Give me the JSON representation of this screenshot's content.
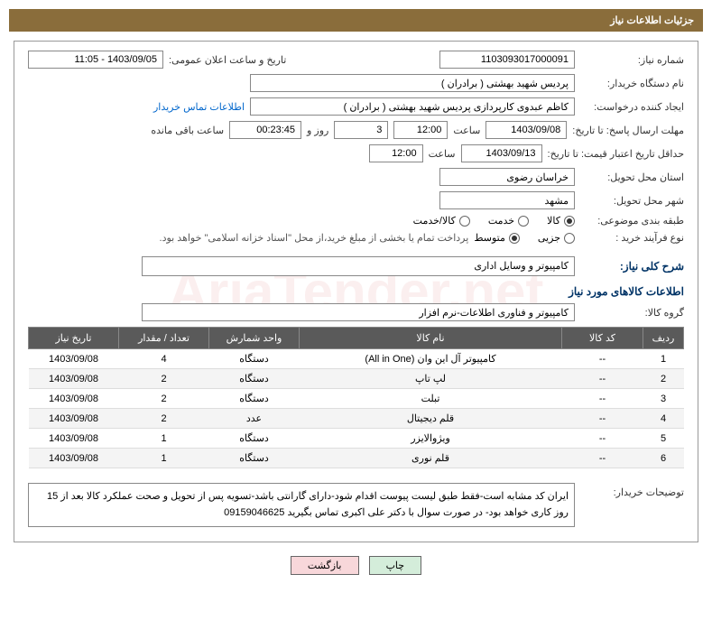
{
  "header": {
    "title": "جزئیات اطلاعات نیاز"
  },
  "watermark": "AriaTender.net",
  "fields": {
    "requestNumber": {
      "label": "شماره نیاز:",
      "value": "1103093017000091"
    },
    "announceDate": {
      "label": "تاریخ و ساعت اعلان عمومی:",
      "value": "1403/09/05 - 11:05"
    },
    "buyerOrg": {
      "label": "نام دستگاه خریدار:",
      "value": "پردیس شهید بهشتی ( برادران )"
    },
    "requester": {
      "label": "ایجاد کننده درخواست:",
      "value": "کاظم  عبدوی  کارپردازی  پردیس شهید بهشتی ( برادران )"
    },
    "contactInfo": "اطلاعات تماس خریدار",
    "deadline": {
      "label": "مهلت ارسال پاسخ: تا تاریخ:",
      "date": "1403/09/08",
      "timeLabel": "ساعت",
      "time": "12:00",
      "daysRemain": "3",
      "andLabel": "روز و",
      "countdown": "00:23:45",
      "remainLabel": "ساعت باقی مانده"
    },
    "minValidity": {
      "label": "حداقل تاریخ اعتبار قیمت: تا تاریخ:",
      "date": "1403/09/13",
      "timeLabel": "ساعت",
      "time": "12:00"
    },
    "province": {
      "label": "استان محل تحویل:",
      "value": "خراسان رضوی"
    },
    "city": {
      "label": "شهر محل تحویل:",
      "value": "مشهد"
    },
    "category": {
      "label": "طبقه بندی موضوعی:",
      "options": [
        "کالا",
        "خدمت",
        "کالا/خدمت"
      ],
      "selected": 0
    },
    "purchaseType": {
      "label": "نوع فرآیند خرید :",
      "options": [
        "جزیی",
        "متوسط"
      ],
      "selected": 1,
      "note": "پرداخت تمام یا بخشی از مبلغ خرید،از محل \"اسناد خزانه اسلامی\" خواهد بود."
    },
    "generalDesc": {
      "label": "شرح کلی نیاز:",
      "value": "کامپیوتر و وسایل اداری"
    },
    "goodsInfo": "اطلاعات کالاهای مورد نیاز",
    "goodsGroup": {
      "label": "گروه کالا:",
      "value": "کامپیوتر و فناوری اطلاعات-نرم افزار"
    },
    "buyerDesc": {
      "label": "توضیحات خریدار:",
      "value": "ایران کد مشابه است-فقط طبق لیست پیوست اقدام شود-دارای گارانتی باشد-تسویه پس از تحویل و صحت عملکرد کالا بعد از 15 روز کاری خواهد بود- در صورت سوال با دکتر علی اکبری تماس بگیرید 09159046625"
    }
  },
  "table": {
    "headers": [
      "ردیف",
      "کد کالا",
      "نام کالا",
      "واحد شمارش",
      "تعداد / مقدار",
      "تاریخ نیاز"
    ],
    "rows": [
      [
        "1",
        "--",
        "کامپیوتر آل این وان (All in One)",
        "دستگاه",
        "4",
        "1403/09/08"
      ],
      [
        "2",
        "--",
        "لپ تاپ",
        "دستگاه",
        "2",
        "1403/09/08"
      ],
      [
        "3",
        "--",
        "تبلت",
        "دستگاه",
        "2",
        "1403/09/08"
      ],
      [
        "4",
        "--",
        "قلم دیجیتال",
        "عدد",
        "2",
        "1403/09/08"
      ],
      [
        "5",
        "--",
        "ویژوالایزر",
        "دستگاه",
        "1",
        "1403/09/08"
      ],
      [
        "6",
        "--",
        "قلم نوری",
        "دستگاه",
        "1",
        "1403/09/08"
      ]
    ]
  },
  "buttons": {
    "print": "چاپ",
    "back": "بازگشت"
  }
}
